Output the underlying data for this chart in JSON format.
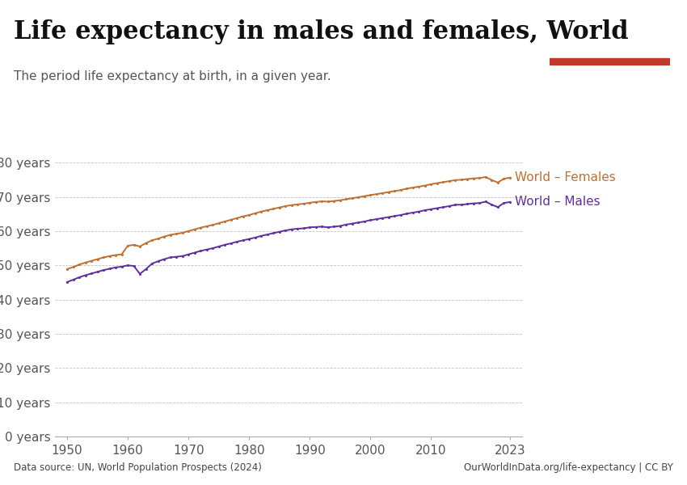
{
  "title": "Life expectancy in males and females, World",
  "subtitle": "The period life expectancy at birth, in a given year.",
  "source_text": "Data source: UN, World Population Prospects (2024)",
  "source_right": "OurWorldInData.org/life-expectancy | CC BY",
  "female_color": "#C07030",
  "male_color": "#6030A0",
  "label_females": "World – Females",
  "label_males": "World – Males",
  "years": [
    1950,
    1951,
    1952,
    1953,
    1954,
    1955,
    1956,
    1957,
    1958,
    1959,
    1960,
    1961,
    1962,
    1963,
    1964,
    1965,
    1966,
    1967,
    1968,
    1969,
    1970,
    1971,
    1972,
    1973,
    1974,
    1975,
    1976,
    1977,
    1978,
    1979,
    1980,
    1981,
    1982,
    1983,
    1984,
    1985,
    1986,
    1987,
    1988,
    1989,
    1990,
    1991,
    1992,
    1993,
    1994,
    1995,
    1996,
    1997,
    1998,
    1999,
    2000,
    2001,
    2002,
    2003,
    2004,
    2005,
    2006,
    2007,
    2008,
    2009,
    2010,
    2011,
    2012,
    2013,
    2014,
    2015,
    2016,
    2017,
    2018,
    2019,
    2020,
    2021,
    2022,
    2023
  ],
  "females": [
    48.9,
    49.5,
    50.2,
    50.8,
    51.3,
    51.8,
    52.3,
    52.7,
    53.0,
    53.2,
    55.7,
    56.0,
    55.5,
    56.5,
    57.3,
    57.8,
    58.4,
    58.9,
    59.2,
    59.5,
    60.0,
    60.5,
    61.0,
    61.4,
    61.8,
    62.3,
    62.8,
    63.3,
    63.8,
    64.3,
    64.7,
    65.2,
    65.7,
    66.1,
    66.5,
    66.9,
    67.3,
    67.6,
    67.8,
    68.0,
    68.3,
    68.5,
    68.7,
    68.6,
    68.8,
    69.0,
    69.3,
    69.6,
    69.9,
    70.2,
    70.5,
    70.8,
    71.1,
    71.4,
    71.7,
    72.0,
    72.4,
    72.7,
    73.0,
    73.3,
    73.7,
    74.0,
    74.3,
    74.6,
    74.9,
    75.0,
    75.2,
    75.4,
    75.5,
    75.8,
    74.9,
    74.2,
    75.3,
    75.6
  ],
  "males": [
    45.1,
    45.8,
    46.5,
    47.1,
    47.6,
    48.1,
    48.6,
    49.0,
    49.4,
    49.6,
    50.0,
    49.8,
    47.5,
    48.9,
    50.5,
    51.2,
    51.8,
    52.3,
    52.5,
    52.7,
    53.2,
    53.7,
    54.2,
    54.6,
    55.0,
    55.5,
    56.0,
    56.4,
    56.9,
    57.3,
    57.7,
    58.1,
    58.6,
    59.0,
    59.4,
    59.8,
    60.2,
    60.5,
    60.7,
    60.8,
    61.1,
    61.2,
    61.3,
    61.1,
    61.3,
    61.5,
    61.9,
    62.2,
    62.5,
    62.8,
    63.2,
    63.5,
    63.8,
    64.1,
    64.4,
    64.7,
    65.1,
    65.4,
    65.7,
    66.1,
    66.4,
    66.7,
    67.0,
    67.3,
    67.7,
    67.7,
    67.9,
    68.1,
    68.2,
    68.6,
    67.7,
    67.0,
    68.2,
    68.5
  ],
  "ylim": [
    0,
    85
  ],
  "yticks": [
    0,
    10,
    20,
    30,
    40,
    50,
    60,
    70,
    80
  ],
  "ytick_labels": [
    "0 years",
    "10 years",
    "20 years",
    "30 years",
    "40 years",
    "50 years",
    "60 years",
    "70 years",
    "80 years"
  ],
  "xlim": [
    1948,
    2025
  ],
  "xticks": [
    1950,
    1960,
    1970,
    1980,
    1990,
    2000,
    2010,
    2023
  ],
  "background_color": "#FFFFFF",
  "grid_color": "#BBBBBB",
  "title_fontsize": 22,
  "subtitle_fontsize": 11,
  "axis_label_fontsize": 11,
  "annotation_fontsize": 11,
  "logo_bg": "#12284C",
  "logo_red": "#C0392B"
}
